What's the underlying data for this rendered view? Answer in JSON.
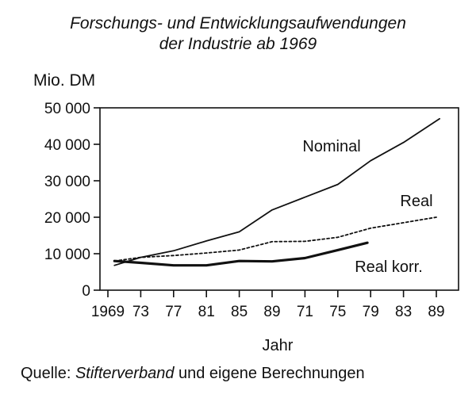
{
  "chart_data": {
    "type": "line",
    "title": "Forschungs- und Entwicklungsaufwendungen",
    "subtitle": "der Industrie ab 1969",
    "ylabel": "Mio. DM",
    "xlabel": "Jahr",
    "source": {
      "prefix": "Quelle: ",
      "name": "Stifterverband",
      "suffix": " und eigene Berechnungen"
    },
    "ylim": [
      0,
      50000
    ],
    "y_ticks": [
      0,
      10000,
      20000,
      30000,
      40000,
      50000
    ],
    "y_tick_labels": [
      "0",
      "10 000",
      "20 000",
      "30 000",
      "40 000",
      "50 000"
    ],
    "x_ticks": [
      "1969",
      "73",
      "77",
      "81",
      "85",
      "89",
      "71",
      "75",
      "79",
      "83",
      "89"
    ],
    "grid": false,
    "series": [
      {
        "name": "Nominal",
        "style": "solid",
        "points": [
          [
            0.2,
            6800
          ],
          [
            1,
            9000
          ],
          [
            2,
            10800
          ],
          [
            3,
            13500
          ],
          [
            4,
            16000
          ],
          [
            5,
            22000
          ],
          [
            6,
            25500
          ],
          [
            7,
            29000
          ],
          [
            8,
            35500
          ],
          [
            9,
            40500
          ],
          [
            10.1,
            47000
          ]
        ]
      },
      {
        "name": "Real",
        "style": "dotted",
        "points": [
          [
            0.2,
            8000
          ],
          [
            1,
            9000
          ],
          [
            2,
            9500
          ],
          [
            3,
            10200
          ],
          [
            4,
            11000
          ],
          [
            5,
            13300
          ],
          [
            6,
            13400
          ],
          [
            7,
            14500
          ],
          [
            8,
            17000
          ],
          [
            9,
            18500
          ],
          [
            10,
            20000
          ]
        ]
      },
      {
        "name": "Real korr.",
        "style": "solid-thick",
        "points": [
          [
            0.2,
            8000
          ],
          [
            1,
            7500
          ],
          [
            2,
            6800
          ],
          [
            3,
            6800
          ],
          [
            4,
            8000
          ],
          [
            5,
            7900
          ],
          [
            6,
            8800
          ],
          [
            7,
            11000
          ],
          [
            7.9,
            13000
          ]
        ]
      }
    ]
  }
}
